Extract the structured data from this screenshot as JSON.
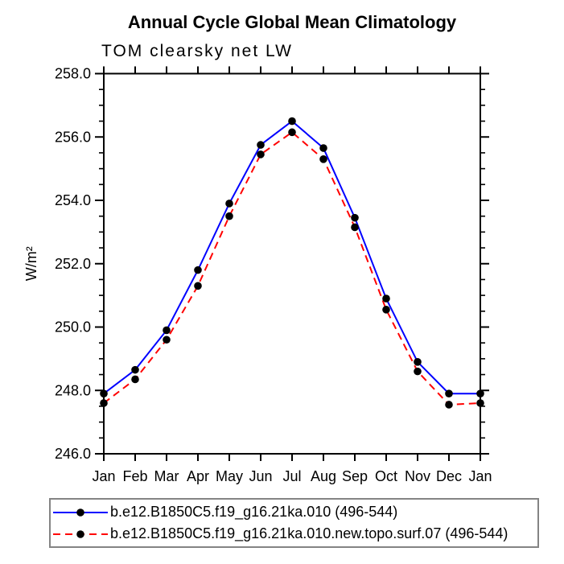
{
  "chart_data": {
    "type": "line",
    "title": "Annual Cycle Global Mean Climatology",
    "subtitle": "TOM clearsky net LW",
    "ylabel": "W/m²",
    "xlabel": "",
    "categories": [
      "Jan",
      "Feb",
      "Mar",
      "Apr",
      "May",
      "Jun",
      "Jul",
      "Aug",
      "Sep",
      "Oct",
      "Nov",
      "Dec",
      "Jan"
    ],
    "ylim": [
      246.0,
      258.0
    ],
    "ytick_interval": 2.0,
    "yminor_interval": 0.5,
    "ytick_labels": [
      "246.0",
      "248.0",
      "250.0",
      "252.0",
      "254.0",
      "256.0",
      "258.0"
    ],
    "grid": false,
    "legend_position": "bottom",
    "axis_color": "#000000",
    "legend_border_color": "#848484",
    "marker_color": "#000000",
    "series": [
      {
        "name": "b.e12.B1850C5.f19_g16.21ka.010 (496-544)",
        "color": "#0000ff",
        "line_style": "solid",
        "marker": "filled-circle",
        "values": [
          247.9,
          248.65,
          249.9,
          251.8,
          253.9,
          255.75,
          256.5,
          255.65,
          253.45,
          250.9,
          248.9,
          247.9,
          247.9
        ]
      },
      {
        "name": "b.e12.B1850C5.f19_g16.21ka.010.new.topo.surf.07 (496-544)",
        "color": "#ff0000",
        "line_style": "dashed",
        "marker": "filled-circle",
        "values": [
          247.6,
          248.35,
          249.6,
          251.3,
          253.5,
          255.45,
          256.15,
          255.3,
          253.15,
          250.55,
          248.6,
          247.55,
          247.6
        ]
      }
    ]
  }
}
